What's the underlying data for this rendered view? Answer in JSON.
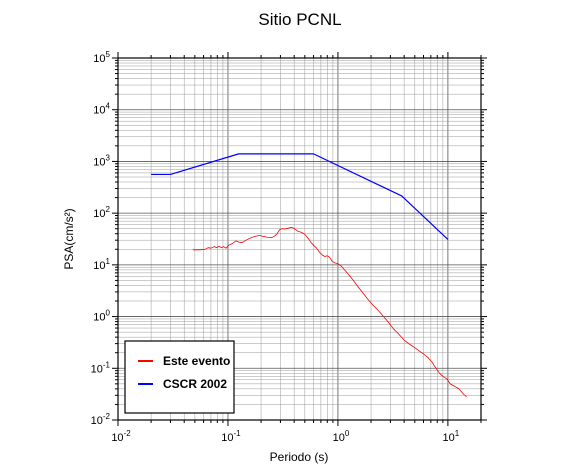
{
  "chart_data": {
    "type": "line",
    "title": "Sitio PCNL",
    "xlabel": "Periodo (s)",
    "ylabel": "PSA(cm/s²)",
    "xscale": "log",
    "yscale": "log",
    "xlim": [
      0.01,
      20
    ],
    "ylim": [
      0.01,
      100000
    ],
    "xticks": [
      {
        "value": 0.01,
        "base": "10",
        "exp": "-2"
      },
      {
        "value": 0.1,
        "base": "10",
        "exp": "-1"
      },
      {
        "value": 1,
        "base": "10",
        "exp": "0"
      },
      {
        "value": 10,
        "base": "10",
        "exp": "1"
      }
    ],
    "yticks": [
      {
        "value": 0.01,
        "base": "10",
        "exp": "-2"
      },
      {
        "value": 0.1,
        "base": "10",
        "exp": "-1"
      },
      {
        "value": 1,
        "base": "10",
        "exp": "0"
      },
      {
        "value": 10,
        "base": "10",
        "exp": "1"
      },
      {
        "value": 100,
        "base": "10",
        "exp": "2"
      },
      {
        "value": 1000,
        "base": "10",
        "exp": "3"
      },
      {
        "value": 10000,
        "base": "10",
        "exp": "4"
      },
      {
        "value": 100000,
        "base": "10",
        "exp": "5"
      }
    ],
    "grid": true,
    "legend_position": "bottom-left",
    "series": [
      {
        "name": "Este evento",
        "color": "#ff0000",
        "points": [
          [
            0.048,
            19.5
          ],
          [
            0.055,
            19.5
          ],
          [
            0.062,
            20
          ],
          [
            0.066,
            21.5
          ],
          [
            0.07,
            21
          ],
          [
            0.075,
            22.5
          ],
          [
            0.079,
            21.5
          ],
          [
            0.083,
            23
          ],
          [
            0.087,
            21.5
          ],
          [
            0.091,
            22.5
          ],
          [
            0.096,
            21
          ],
          [
            0.102,
            24
          ],
          [
            0.11,
            26
          ],
          [
            0.118,
            29
          ],
          [
            0.126,
            27.5
          ],
          [
            0.135,
            27
          ],
          [
            0.146,
            30
          ],
          [
            0.16,
            33
          ],
          [
            0.176,
            35.5
          ],
          [
            0.193,
            37
          ],
          [
            0.21,
            35.5
          ],
          [
            0.23,
            34
          ],
          [
            0.25,
            33.5
          ],
          [
            0.265,
            36
          ],
          [
            0.28,
            40
          ],
          [
            0.295,
            48
          ],
          [
            0.31,
            50
          ],
          [
            0.33,
            49.5
          ],
          [
            0.35,
            51
          ],
          [
            0.375,
            53
          ],
          [
            0.4,
            51
          ],
          [
            0.43,
            45
          ],
          [
            0.46,
            43
          ],
          [
            0.5,
            39
          ],
          [
            0.54,
            32
          ],
          [
            0.57,
            27
          ],
          [
            0.6,
            24
          ],
          [
            0.64,
            21
          ],
          [
            0.68,
            17.5
          ],
          [
            0.72,
            15.5
          ],
          [
            0.76,
            14.5
          ],
          [
            0.8,
            15
          ],
          [
            0.84,
            14
          ],
          [
            0.88,
            12
          ],
          [
            0.93,
            11
          ],
          [
            1.0,
            10.5
          ],
          [
            1.07,
            9.5
          ],
          [
            1.15,
            8
          ],
          [
            1.25,
            6.5
          ],
          [
            1.38,
            5
          ],
          [
            1.52,
            3.8
          ],
          [
            1.68,
            2.9
          ],
          [
            1.86,
            2.2
          ],
          [
            2.06,
            1.7
          ],
          [
            2.3,
            1.35
          ],
          [
            2.55,
            1.05
          ],
          [
            2.85,
            0.8
          ],
          [
            3.2,
            0.58
          ],
          [
            3.6,
            0.45
          ],
          [
            4.0,
            0.35
          ],
          [
            4.5,
            0.29
          ],
          [
            5.0,
            0.25
          ],
          [
            5.5,
            0.215
          ],
          [
            6.0,
            0.19
          ],
          [
            6.6,
            0.16
          ],
          [
            7.2,
            0.13
          ],
          [
            7.8,
            0.1
          ],
          [
            8.4,
            0.08
          ],
          [
            9.0,
            0.07
          ],
          [
            9.8,
            0.062
          ],
          [
            10.5,
            0.05
          ],
          [
            11.5,
            0.045
          ],
          [
            12.6,
            0.04
          ],
          [
            13.8,
            0.032
          ],
          [
            14.8,
            0.028
          ]
        ]
      },
      {
        "name": "CSCR 2002",
        "color": "#0000ff",
        "points": [
          [
            0.02,
            560
          ],
          [
            0.03,
            560
          ],
          [
            0.125,
            1400
          ],
          [
            0.6,
            1400
          ],
          [
            3.8,
            215
          ],
          [
            10,
            31
          ]
        ]
      }
    ]
  }
}
